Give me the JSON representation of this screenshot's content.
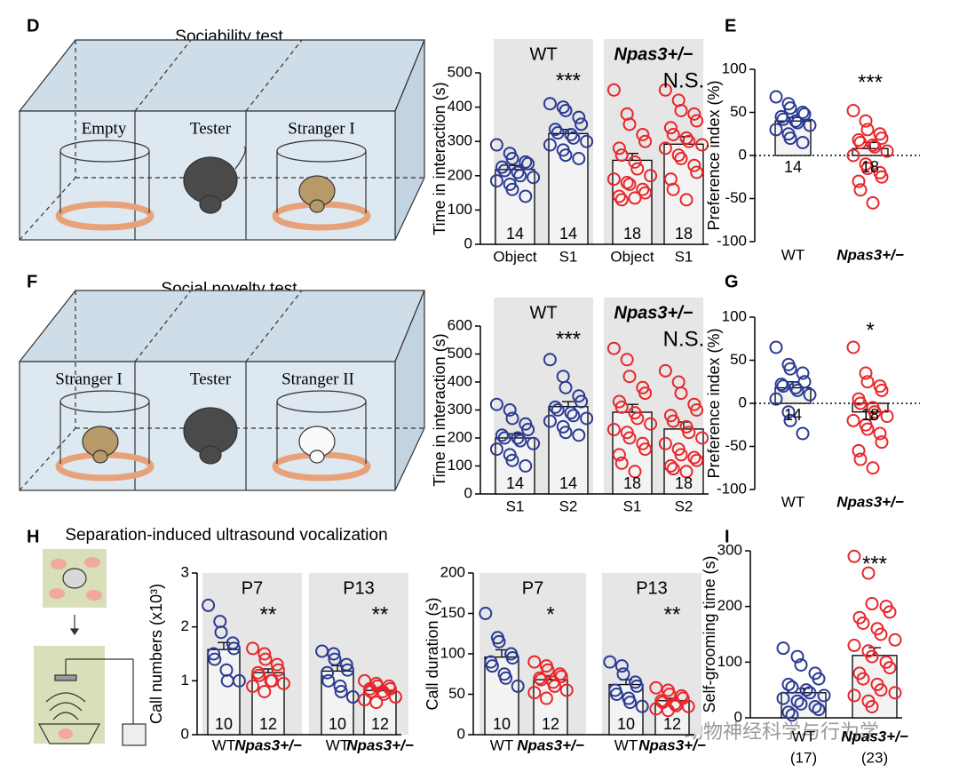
{
  "figure": {
    "panel_labels": [
      "D",
      "E",
      "F",
      "G",
      "H",
      "I"
    ],
    "titles": [
      "Sociability test",
      "Social novelty test",
      "Separation-induced ultrasound vocalization"
    ],
    "diagram_labels": [
      [
        "Empty",
        "Tester",
        "Stranger I"
      ],
      [
        "Stranger I",
        "Tester",
        "Stranger II"
      ]
    ],
    "watermark": "动物神经科学与行为学"
  },
  "chart_data": [
    {
      "type": "bar",
      "ylabel": "Time in interaction (s)",
      "ylim": [
        0,
        500
      ],
      "yticks": [
        0,
        100,
        200,
        300,
        400,
        500
      ],
      "groups": [
        {
          "name": "WT",
          "sig": "***",
          "categories": [
            "Object",
            "S1"
          ],
          "colors": [
            "#2b3a93",
            "#2b3a93"
          ],
          "values": [
            218,
            323
          ],
          "errors": [
            12,
            12
          ],
          "n": [
            14,
            14
          ],
          "points": [
            [
              290,
              265,
              250,
              240,
              235,
              225,
              215,
              210,
              200,
              195,
              185,
              175,
              160,
              140
            ],
            [
              410,
              400,
              390,
              370,
              350,
              335,
              325,
              320,
              310,
              300,
              290,
              275,
              260,
              250
            ]
          ]
        },
        {
          "name": "Npas3+/−",
          "sig": "N.S.",
          "categories": [
            "Object",
            "S1"
          ],
          "colors": [
            "#e8262a",
            "#e8262a"
          ],
          "values": [
            245,
            292
          ],
          "errors": [
            20,
            22
          ],
          "n": [
            18,
            18
          ],
          "points": [
            [
              450,
              380,
              350,
              320,
              300,
              280,
              260,
              240,
              220,
              200,
              190,
              180,
              175,
              160,
              150,
              140,
              130,
              135
            ],
            [
              450,
              420,
              390,
              380,
              360,
              340,
              320,
              310,
              300,
              290,
              280,
              260,
              250,
              230,
              210,
              190,
              160,
              130
            ]
          ]
        }
      ]
    },
    {
      "type": "bar",
      "ylabel": "Preference index (%)",
      "ylim": [
        -100,
        100
      ],
      "yticks": [
        -100,
        -50,
        0,
        50,
        100
      ],
      "zero_line": true,
      "groups": [
        {
          "sig": "***",
          "categories": [
            "WT",
            "Npas3+/−"
          ],
          "colors": [
            "#2b3a93",
            "#e8262a"
          ],
          "values": [
            40,
            8
          ],
          "errors": [
            4,
            7
          ],
          "n": [
            14,
            18
          ],
          "points": [
            [
              68,
              60,
              55,
              50,
              48,
              45,
              42,
              40,
              38,
              35,
              30,
              25,
              20,
              15
            ],
            [
              52,
              40,
              30,
              25,
              20,
              18,
              15,
              12,
              10,
              5,
              0,
              -10,
              -15,
              -20,
              -25,
              -30,
              -40,
              -55
            ]
          ]
        }
      ]
    },
    {
      "type": "bar",
      "ylabel": "Time in interaction (s)",
      "ylim": [
        0,
        600
      ],
      "yticks": [
        0,
        100,
        200,
        300,
        400,
        500,
        600
      ],
      "groups": [
        {
          "name": "WT",
          "sig": "***",
          "categories": [
            "S1",
            "S2"
          ],
          "colors": [
            "#2b3a93",
            "#2b3a93"
          ],
          "values": [
            200,
            312
          ],
          "errors": [
            15,
            18
          ],
          "n": [
            14,
            14
          ],
          "points": [
            [
              320,
              300,
              270,
              250,
              230,
              210,
              200,
              200,
              190,
              180,
              160,
              140,
              120,
              100
            ],
            [
              480,
              420,
              380,
              350,
              330,
              310,
              300,
              290,
              280,
              270,
              260,
              240,
              220,
              210
            ]
          ]
        },
        {
          "name": "Npas3+/−",
          "sig": "N.S.",
          "categories": [
            "S1",
            "S2"
          ],
          "colors": [
            "#e8262a",
            "#e8262a"
          ],
          "values": [
            292,
            232
          ],
          "errors": [
            28,
            25
          ],
          "n": [
            18,
            18
          ],
          "points": [
            [
              520,
              480,
              420,
              380,
              360,
              330,
              310,
              290,
              270,
              250,
              230,
              220,
              200,
              180,
              160,
              140,
              110,
              80
            ],
            [
              440,
              400,
              360,
              320,
              300,
              280,
              260,
              240,
              220,
              200,
              180,
              160,
              140,
              130,
              120,
              100,
              90,
              80
            ]
          ]
        }
      ]
    },
    {
      "type": "bar",
      "ylabel": "Preference index (%)",
      "ylim": [
        -100,
        100
      ],
      "yticks": [
        -100,
        -50,
        0,
        50,
        100
      ],
      "zero_line": true,
      "groups": [
        {
          "sig": "*",
          "categories": [
            "WT",
            "Npas3+/−"
          ],
          "colors": [
            "#2b3a93",
            "#e8262a"
          ],
          "values": [
            18,
            -10
          ],
          "errors": [
            7,
            9
          ],
          "n": [
            14,
            18
          ],
          "points": [
            [
              65,
              45,
              40,
              35,
              25,
              22,
              20,
              18,
              15,
              10,
              5,
              -10,
              -20,
              -35
            ],
            [
              65,
              35,
              25,
              20,
              15,
              5,
              0,
              -5,
              -10,
              -15,
              -20,
              -25,
              -30,
              -35,
              -45,
              -55,
              -65,
              -75
            ]
          ]
        }
      ]
    },
    {
      "type": "bar",
      "ylabel": "Call numbers (x10³)",
      "ylim": [
        0,
        3
      ],
      "yticks": [
        0,
        1,
        2,
        3
      ],
      "groups": [
        {
          "name": "P7",
          "sig": "**",
          "categories": [
            "WT",
            "Npas3+/−"
          ],
          "colors": [
            "#2b3a93",
            "#e8262a"
          ],
          "values": [
            1.58,
            1.15
          ],
          "errors": [
            0.13,
            0.07
          ],
          "n": [
            10,
            12
          ],
          "points": [
            [
              2.4,
              2.1,
              1.9,
              1.7,
              1.6,
              1.5,
              1.4,
              1.2,
              1.0,
              1.0
            ],
            [
              1.6,
              1.5,
              1.4,
              1.3,
              1.2,
              1.15,
              1.1,
              1.0,
              1.0,
              0.95,
              0.9,
              0.8
            ]
          ]
        },
        {
          "name": "P13",
          "sig": "**",
          "categories": [
            "WT",
            "Npas3+/−"
          ],
          "colors": [
            "#2b3a93",
            "#e8262a"
          ],
          "values": [
            1.18,
            0.82
          ],
          "errors": [
            0.1,
            0.05
          ],
          "n": [
            10,
            12
          ],
          "points": [
            [
              1.55,
              1.5,
              1.4,
              1.3,
              1.2,
              1.15,
              1.0,
              0.9,
              0.8,
              0.7
            ],
            [
              1.0,
              0.95,
              0.9,
              0.9,
              0.85,
              0.85,
              0.8,
              0.8,
              0.75,
              0.7,
              0.65,
              0.6
            ]
          ]
        }
      ]
    },
    {
      "type": "bar",
      "ylabel": "Call duration (s)",
      "ylim": [
        0,
        200
      ],
      "yticks": [
        0,
        50,
        100,
        150,
        200
      ],
      "groups": [
        {
          "name": "P7",
          "sig": "*",
          "categories": [
            "WT",
            "Npas3+/−"
          ],
          "colors": [
            "#2b3a93",
            "#e8262a"
          ],
          "values": [
            96,
            68
          ],
          "errors": [
            9,
            4
          ],
          "n": [
            10,
            12
          ],
          "points": [
            [
              150,
              120,
              115,
              100,
              95,
              90,
              85,
              75,
              70,
              60
            ],
            [
              90,
              85,
              80,
              75,
              72,
              70,
              68,
              65,
              60,
              55,
              52,
              45
            ]
          ]
        },
        {
          "name": "P13",
          "sig": "**",
          "categories": [
            "WT",
            "Npas3+/−"
          ],
          "colors": [
            "#2b3a93",
            "#e8262a"
          ],
          "values": [
            62,
            42
          ],
          "errors": [
            6,
            3
          ],
          "n": [
            10,
            12
          ],
          "points": [
            [
              90,
              85,
              75,
              65,
              60,
              55,
              50,
              45,
              40,
              35
            ],
            [
              58,
              55,
              50,
              48,
              45,
              42,
              40,
              38,
              36,
              35,
              32,
              30
            ]
          ]
        }
      ]
    },
    {
      "type": "bar",
      "ylabel": "Self-grooming time (s)",
      "ylim": [
        0,
        300
      ],
      "yticks": [
        0,
        100,
        200,
        300
      ],
      "groups": [
        {
          "sig": "***",
          "categories": [
            "WT",
            "Npas3+/−"
          ],
          "colors": [
            "#2b3a93",
            "#e8262a"
          ],
          "values": [
            45,
            112
          ],
          "errors": [
            8,
            14
          ],
          "n": [
            17,
            23
          ],
          "n_labels": [
            "(17)",
            "(23)"
          ],
          "points": [
            [
              125,
              110,
              95,
              80,
              70,
              60,
              55,
              50,
              45,
              40,
              35,
              30,
              25,
              20,
              15,
              10,
              5
            ],
            [
              290,
              260,
              205,
              200,
              190,
              180,
              170,
              160,
              150,
              140,
              130,
              120,
              110,
              100,
              90,
              80,
              70,
              60,
              50,
              45,
              40,
              30,
              20
            ]
          ]
        }
      ]
    }
  ]
}
